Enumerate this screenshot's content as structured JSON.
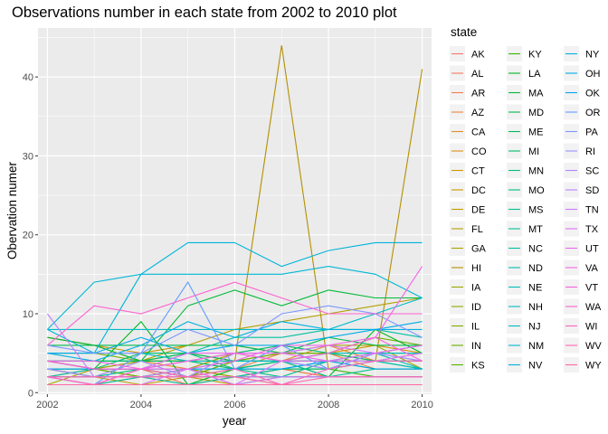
{
  "chart_data": {
    "type": "line",
    "title": "Observations number in each state from 2002 to 2010 plot",
    "xlabel": "year",
    "ylabel": "Obervation numer",
    "xlim": [
      2001.8,
      2010.2
    ],
    "ylim": [
      -0.2,
      46.2
    ],
    "x_ticks": [
      2002,
      2004,
      2006,
      2008,
      2010
    ],
    "y_ticks": [
      0,
      10,
      20,
      30,
      40
    ],
    "grid": true,
    "background": "#ebebeb",
    "legend": {
      "title": "state",
      "placement": "right",
      "columns": 3
    },
    "x": [
      2002,
      2003,
      2004,
      2005,
      2006,
      2007,
      2008,
      2009,
      2010
    ],
    "series": [
      {
        "name": "AK",
        "color": "#F8766D",
        "values": [
          2,
          2,
          2,
          3,
          2,
          2,
          2,
          2,
          2
        ]
      },
      {
        "name": "AL",
        "color": "#F47A5F",
        "values": [
          1,
          1,
          3,
          1,
          2,
          3,
          2,
          2,
          2
        ]
      },
      {
        "name": "AR",
        "color": "#EF7F4F",
        "values": [
          3,
          2,
          2,
          3,
          2,
          3,
          2,
          2,
          2
        ]
      },
      {
        "name": "AZ",
        "color": "#E9843E",
        "values": [
          2,
          3,
          2,
          2,
          3,
          5,
          5,
          3,
          3
        ]
      },
      {
        "name": "CA",
        "color": "#E28A2C",
        "values": [
          2,
          2,
          4,
          3,
          5,
          4,
          6,
          4,
          4
        ]
      },
      {
        "name": "CO",
        "color": "#DA8F18",
        "values": [
          4,
          3,
          4,
          4,
          4,
          5,
          5,
          4,
          5
        ]
      },
      {
        "name": "CT",
        "color": "#D19400",
        "values": [
          7,
          6,
          5,
          6,
          6,
          5,
          5,
          6,
          5
        ]
      },
      {
        "name": "DC",
        "color": "#C89900",
        "values": [
          1,
          1,
          2,
          1,
          2,
          1,
          1,
          1,
          1
        ]
      },
      {
        "name": "DE",
        "color": "#BE9C00",
        "values": [
          2,
          2,
          1,
          2,
          1,
          2,
          2,
          2,
          2
        ]
      },
      {
        "name": "FL",
        "color": "#B3A000",
        "values": [
          7,
          6,
          4,
          6,
          8,
          9,
          10,
          11,
          12
        ]
      },
      {
        "name": "GA",
        "color": "#A9A400",
        "values": [
          1,
          3,
          2,
          3,
          5,
          5,
          6,
          6,
          3
        ]
      },
      {
        "name": "HI",
        "color": "#B48F00",
        "values": [
          2,
          1,
          3,
          2,
          4,
          44,
          3,
          4,
          41
        ]
      },
      {
        "name": "IA",
        "color": "#9AA600",
        "values": [
          4,
          3,
          4,
          4,
          3,
          3,
          3,
          4,
          4
        ]
      },
      {
        "name": "ID",
        "color": "#8CAA00",
        "values": [
          3,
          2,
          2,
          3,
          2,
          2,
          2,
          2,
          2
        ]
      },
      {
        "name": "IL",
        "color": "#7CAE00",
        "values": [
          5,
          5,
          4,
          5,
          4,
          4,
          5,
          5,
          5
        ]
      },
      {
        "name": "IN",
        "color": "#69B100",
        "values": [
          3,
          3,
          2,
          2,
          4,
          5,
          5,
          7,
          6
        ]
      },
      {
        "name": "KS",
        "color": "#53B400",
        "values": [
          3,
          3,
          3,
          2,
          3,
          4,
          4,
          3,
          3
        ]
      },
      {
        "name": "KY",
        "color": "#37B600",
        "values": [
          4,
          3,
          3,
          2,
          2,
          3,
          3,
          2,
          2
        ]
      },
      {
        "name": "LA",
        "color": "#00B81F",
        "values": [
          3,
          3,
          9,
          1,
          3,
          4,
          2,
          8,
          5
        ]
      },
      {
        "name": "MA",
        "color": "#00BA38",
        "values": [
          7,
          6,
          4,
          11,
          13,
          11,
          13,
          12,
          12
        ]
      },
      {
        "name": "MD",
        "color": "#00BB4B",
        "values": [
          6,
          6,
          6,
          6,
          6,
          5,
          7,
          6,
          6
        ]
      },
      {
        "name": "ME",
        "color": "#00BC5B",
        "values": [
          4,
          4,
          4,
          5,
          4,
          4,
          4,
          4,
          3
        ]
      },
      {
        "name": "MI",
        "color": "#00BD6A",
        "values": [
          4,
          4,
          4,
          4,
          5,
          6,
          5,
          4,
          4
        ]
      },
      {
        "name": "MN",
        "color": "#00BF77",
        "values": [
          4,
          3,
          5,
          5,
          3,
          3,
          3,
          5,
          5
        ]
      },
      {
        "name": "MO",
        "color": "#00C084",
        "values": [
          3,
          2,
          3,
          4,
          3,
          2,
          4,
          5,
          6
        ]
      },
      {
        "name": "MS",
        "color": "#00C08F",
        "values": [
          2,
          2,
          2,
          3,
          3,
          4,
          2,
          3,
          3
        ]
      },
      {
        "name": "MT",
        "color": "#00C19A",
        "values": [
          1,
          1,
          1,
          1,
          1,
          1,
          1,
          1,
          1
        ]
      },
      {
        "name": "NC",
        "color": "#00C1A5",
        "values": [
          2,
          3,
          3,
          5,
          7,
          7,
          8,
          8,
          7
        ]
      },
      {
        "name": "ND",
        "color": "#00C0AF",
        "values": [
          1,
          1,
          2,
          1,
          2,
          3,
          4,
          5,
          3
        ]
      },
      {
        "name": "NE",
        "color": "#00BFB9",
        "values": [
          3,
          3,
          3,
          3,
          4,
          4,
          3,
          4,
          3
        ]
      },
      {
        "name": "NH",
        "color": "#00BDC2",
        "values": [
          5,
          5,
          5,
          4,
          4,
          4,
          5,
          5,
          5
        ]
      },
      {
        "name": "NJ",
        "color": "#00BBCB",
        "values": [
          8,
          8,
          8,
          8,
          8,
          8,
          8,
          10,
          12
        ]
      },
      {
        "name": "NM",
        "color": "#00B8D3",
        "values": [
          8,
          14,
          15,
          15,
          15,
          15,
          16,
          15,
          12
        ]
      },
      {
        "name": "NV",
        "color": "#00B4DB",
        "values": [
          8,
          5,
          15,
          19,
          19,
          16,
          18,
          19,
          19
        ]
      },
      {
        "name": "NY",
        "color": "#00B0E2",
        "values": [
          5,
          4,
          6,
          9,
          7,
          9,
          8,
          8,
          8
        ]
      },
      {
        "name": "OH",
        "color": "#00ABE9",
        "values": [
          5,
          5,
          7,
          5,
          6,
          6,
          7,
          8,
          9
        ]
      },
      {
        "name": "OK",
        "color": "#00A5EF",
        "values": [
          3,
          3,
          3,
          3,
          3,
          3,
          4,
          3,
          3
        ]
      },
      {
        "name": "OR",
        "color": "#619CFF",
        "values": [
          2,
          1,
          5,
          14,
          3,
          6,
          3,
          5,
          4
        ]
      },
      {
        "name": "PA",
        "color": "#7E96FF",
        "values": [
          6,
          5,
          5,
          8,
          6,
          10,
          11,
          10,
          7
        ]
      },
      {
        "name": "RI",
        "color": "#988FFF",
        "values": [
          2,
          2,
          4,
          2,
          2,
          2,
          2,
          2,
          2
        ]
      },
      {
        "name": "SC",
        "color": "#AE87FF",
        "values": [
          3,
          2,
          2,
          2,
          5,
          4,
          3,
          5,
          4
        ]
      },
      {
        "name": "SD",
        "color": "#C07EFF",
        "values": [
          10,
          2,
          2,
          3,
          1,
          2,
          2,
          2,
          2
        ]
      },
      {
        "name": "TN",
        "color": "#D077FF",
        "values": [
          2,
          1,
          3,
          4,
          5,
          5,
          6,
          5,
          6
        ]
      },
      {
        "name": "TX",
        "color": "#DE71F9",
        "values": [
          1,
          1,
          1,
          3,
          1,
          4,
          4,
          4,
          5
        ]
      },
      {
        "name": "UT",
        "color": "#EA69F1",
        "values": [
          4,
          3,
          3,
          5,
          5,
          5,
          4,
          5,
          6
        ]
      },
      {
        "name": "VA",
        "color": "#F265E7",
        "values": [
          4,
          4,
          3,
          3,
          4,
          6,
          6,
          7,
          16
        ]
      },
      {
        "name": "VT",
        "color": "#F862DC",
        "values": [
          4,
          3,
          3,
          4,
          5,
          4,
          5,
          7,
          4
        ]
      },
      {
        "name": "WA",
        "color": "#FC61D0",
        "values": [
          6,
          11,
          10,
          12,
          14,
          12,
          10,
          10,
          10
        ]
      },
      {
        "name": "WI",
        "color": "#FF63C2",
        "values": [
          2,
          1,
          3,
          2,
          3,
          1,
          3,
          4,
          4
        ]
      },
      {
        "name": "WV",
        "color": "#FF66B4",
        "values": [
          2,
          2,
          2,
          2,
          2,
          1,
          2,
          2,
          2
        ]
      },
      {
        "name": "WY",
        "color": "#FF69A4",
        "values": [
          1,
          1,
          1,
          1,
          1,
          1,
          1,
          1,
          1
        ]
      }
    ]
  }
}
